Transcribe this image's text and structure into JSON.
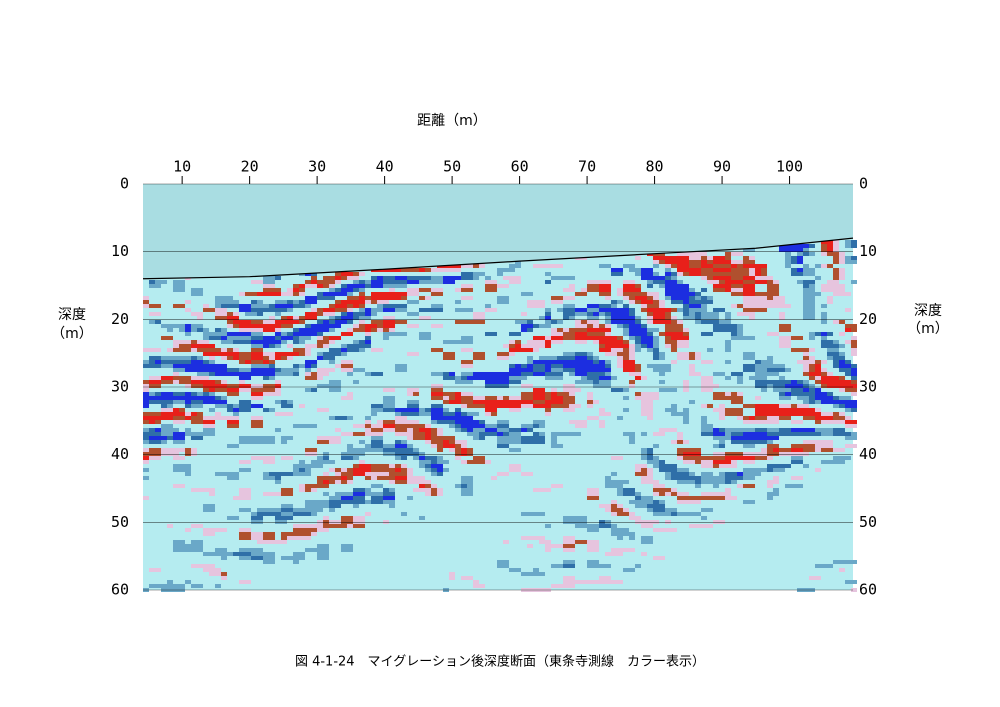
{
  "chart_data": {
    "type": "section",
    "x_label": "距離（m）",
    "y_label": [
      "深度",
      "（m）"
    ],
    "caption": "図 4-1-24　マイグレーション後深度断面（東条寺測線　カラー表示）",
    "xlim": [
      4.2,
      109.4
    ],
    "xticks": [
      10,
      20,
      30,
      40,
      50,
      60,
      70,
      80,
      90,
      100
    ],
    "ylim": [
      0,
      60
    ],
    "yticks": [
      0,
      10,
      20,
      30,
      40,
      50,
      60
    ],
    "grid": true,
    "water_color": "#a9dde2",
    "line": {
      "color": "#000000",
      "x": [
        4.2,
        20,
        40,
        60,
        80,
        95,
        109.4
      ],
      "values": [
        14,
        13.7,
        12.6,
        11.4,
        10.3,
        9.5,
        8
      ]
    }
  }
}
